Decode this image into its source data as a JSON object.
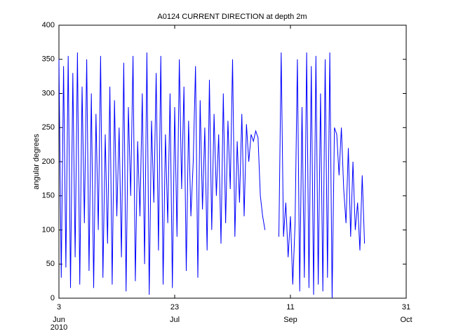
{
  "chart_data": {
    "type": "line",
    "title": "A0124 CURRENT DIRECTION at depth 2m",
    "y_label": "angular degrees",
    "year_label": "2010",
    "xlim": [
      "2010-06-03",
      "2010-10-31"
    ],
    "xticks": [
      {
        "value": "2010-06-03",
        "label": "3",
        "month": "Jun"
      },
      {
        "value": "2010-07-23",
        "label": "23",
        "month": "Jul"
      },
      {
        "value": "2010-09-11",
        "label": "11",
        "month": "Sep"
      },
      {
        "value": "2010-10-31",
        "label": "31",
        "month": "Oct"
      }
    ],
    "ylim": [
      0,
      400
    ],
    "yticks": [
      0,
      50,
      100,
      150,
      200,
      250,
      300,
      350,
      400
    ],
    "x": [
      "2010-06-03",
      "2010-06-04",
      "2010-06-05",
      "2010-06-06",
      "2010-06-07",
      "2010-06-08",
      "2010-06-09",
      "2010-06-10",
      "2010-06-11",
      "2010-06-12",
      "2010-06-13",
      "2010-06-14",
      "2010-06-15",
      "2010-06-16",
      "2010-06-17",
      "2010-06-18",
      "2010-06-19",
      "2010-06-20",
      "2010-06-21",
      "2010-06-22",
      "2010-06-23",
      "2010-06-24",
      "2010-06-25",
      "2010-06-26",
      "2010-06-27",
      "2010-06-28",
      "2010-06-29",
      "2010-06-30",
      "2010-07-01",
      "2010-07-02",
      "2010-07-03",
      "2010-07-04",
      "2010-07-05",
      "2010-07-06",
      "2010-07-07",
      "2010-07-08",
      "2010-07-09",
      "2010-07-10",
      "2010-07-11",
      "2010-07-12",
      "2010-07-13",
      "2010-07-14",
      "2010-07-15",
      "2010-07-16",
      "2010-07-17",
      "2010-07-18",
      "2010-07-19",
      "2010-07-20",
      "2010-07-21",
      "2010-07-22",
      "2010-07-23",
      "2010-07-24",
      "2010-07-25",
      "2010-07-26",
      "2010-07-27",
      "2010-07-28",
      "2010-07-29",
      "2010-07-30",
      "2010-07-31",
      "2010-08-01",
      "2010-08-02",
      "2010-08-03",
      "2010-08-04",
      "2010-08-05",
      "2010-08-06",
      "2010-08-07",
      "2010-08-08",
      "2010-08-09",
      "2010-08-10",
      "2010-08-11",
      "2010-08-12",
      "2010-08-13",
      "2010-08-14",
      "2010-08-15",
      "2010-08-16",
      "2010-08-17",
      "2010-08-18",
      "2010-08-19",
      "2010-08-20",
      "2010-08-21",
      "2010-08-22",
      "2010-08-23",
      "2010-08-24",
      "2010-08-25",
      "2010-08-26",
      "2010-08-27",
      "2010-08-28",
      "2010-08-29",
      "2010-08-30",
      "2010-08-31",
      "2010-09-01",
      "2010-09-02",
      "2010-09-03",
      "2010-09-04",
      "2010-09-05",
      "2010-09-06",
      "2010-09-07",
      "2010-09-08",
      "2010-09-09",
      "2010-09-10",
      "2010-09-11",
      "2010-09-12",
      "2010-09-13",
      "2010-09-14",
      "2010-09-15",
      "2010-09-16",
      "2010-09-17",
      "2010-09-18",
      "2010-09-19",
      "2010-09-20",
      "2010-09-21",
      "2010-09-22",
      "2010-09-23",
      "2010-09-24",
      "2010-09-25",
      "2010-09-26",
      "2010-09-27",
      "2010-09-28",
      "2010-09-29",
      "2010-09-30",
      "2010-10-01",
      "2010-10-02",
      "2010-10-03",
      "2010-10-04",
      "2010-10-05",
      "2010-10-06",
      "2010-10-07",
      "2010-10-08",
      "2010-10-09",
      "2010-10-10",
      "2010-10-11",
      "2010-10-12",
      "2010-10-13"
    ],
    "series": [
      {
        "name": "current direction",
        "color": "#0000ff",
        "values": [
          350,
          30,
          340,
          45,
          355,
          15,
          330,
          60,
          360,
          20,
          310,
          110,
          350,
          40,
          300,
          15,
          270,
          100,
          355,
          30,
          240,
          80,
          310,
          20,
          290,
          120,
          250,
          60,
          345,
          10,
          280,
          150,
          355,
          25,
          230,
          120,
          300,
          50,
          360,
          5,
          260,
          140,
          330,
          70,
          355,
          20,
          240,
          110,
          300,
          15,
          280,
          90,
          350,
          160,
          310,
          40,
          260,
          120,
          200,
          340,
          30,
          290,
          130,
          250,
          70,
          320,
          100,
          270,
          150,
          240,
          80,
          300,
          110,
          260,
          160,
          350,
          90,
          230,
          140,
          270,
          120,
          255,
          200,
          240,
          230,
          245,
          235,
          150,
          120,
          100,
          null,
          null,
          null,
          null,
          null,
          90,
          360,
          90,
          140,
          60,
          120,
          20,
          110,
          350,
          10,
          280,
          30,
          360,
          15,
          340,
          5,
          355,
          20,
          300,
          10,
          350,
          30,
          360,
          0,
          250,
          240,
          180,
          250,
          160,
          110,
          220,
          90,
          200,
          100,
          140,
          70,
          180,
          80
        ]
      }
    ]
  }
}
